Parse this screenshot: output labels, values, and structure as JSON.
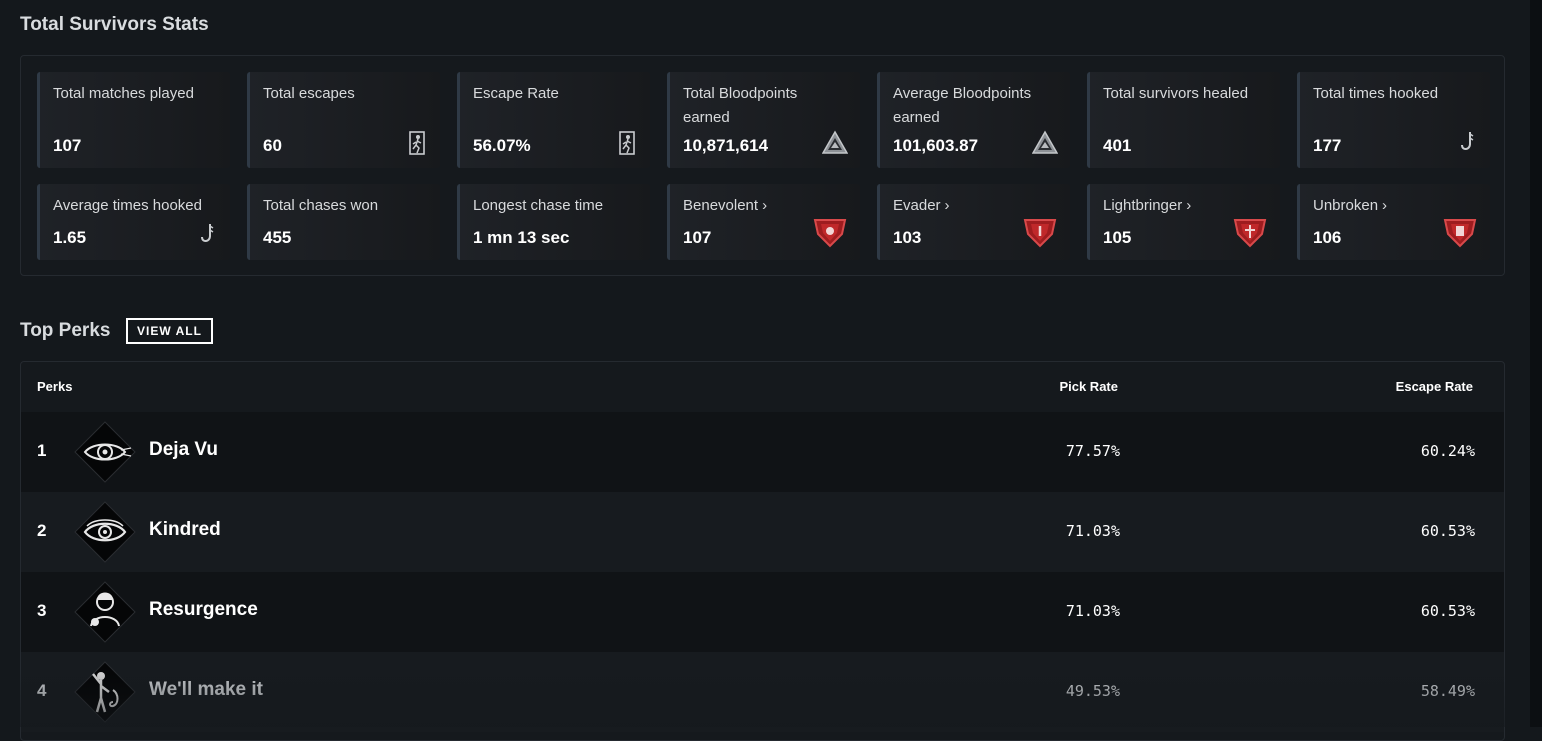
{
  "stats": {
    "title": "Total Survivors Stats",
    "cards": [
      {
        "label": "Total matches played",
        "value": "107",
        "icon": ""
      },
      {
        "label": "Total escapes",
        "value": "60",
        "icon": "exit-door-icon"
      },
      {
        "label": "Escape Rate",
        "value": "56.07%",
        "icon": "exit-door-icon"
      },
      {
        "label": "Total Bloodpoints earned",
        "value": "10,871,614",
        "icon": "bloodpoints-icon"
      },
      {
        "label": "Average Bloodpoints earned",
        "value": "101,603.87",
        "icon": "bloodpoints-icon"
      },
      {
        "label": "Total survivors healed",
        "value": "401",
        "icon": ""
      },
      {
        "label": "Total times hooked",
        "value": "177",
        "icon": "hook-icon"
      },
      {
        "label": "Average times hooked",
        "value": "1.65",
        "icon": "hook-icon"
      },
      {
        "label": "Total chases won",
        "value": "455",
        "icon": ""
      },
      {
        "label": "Longest chase time",
        "value": "1 mn 13 sec",
        "icon": ""
      },
      {
        "label": "Benevolent",
        "value": "107",
        "icon": "emblem-icon",
        "chevron": "›"
      },
      {
        "label": "Evader",
        "value": "103",
        "icon": "emblem-icon",
        "chevron": "›"
      },
      {
        "label": "Lightbringer",
        "value": "105",
        "icon": "emblem-icon",
        "chevron": "›"
      },
      {
        "label": "Unbroken",
        "value": "106",
        "icon": "emblem-icon",
        "chevron": "›"
      }
    ]
  },
  "perks": {
    "title": "Top Perks",
    "view_all": "VIEW ALL",
    "headers": {
      "perks": "Perks",
      "pick_rate": "Pick Rate",
      "escape_rate": "Escape Rate"
    },
    "rows": [
      {
        "rank": "1",
        "name": "Deja Vu",
        "pick_rate": "77.57%",
        "escape_rate": "60.24%",
        "icon": "eye-perk-icon"
      },
      {
        "rank": "2",
        "name": "Kindred",
        "pick_rate": "71.03%",
        "escape_rate": "60.53%",
        "icon": "eye-perk-icon"
      },
      {
        "rank": "3",
        "name": "Resurgence",
        "pick_rate": "71.03%",
        "escape_rate": "60.53%",
        "icon": "portrait-perk-icon"
      },
      {
        "rank": "4",
        "name": "We'll make it",
        "pick_rate": "49.53%",
        "escape_rate": "58.49%",
        "icon": "hook-figure-perk-icon"
      }
    ]
  },
  "colors": {
    "background": "#14181c",
    "card": "#1f2227",
    "emblem_red": "#c0282a"
  }
}
